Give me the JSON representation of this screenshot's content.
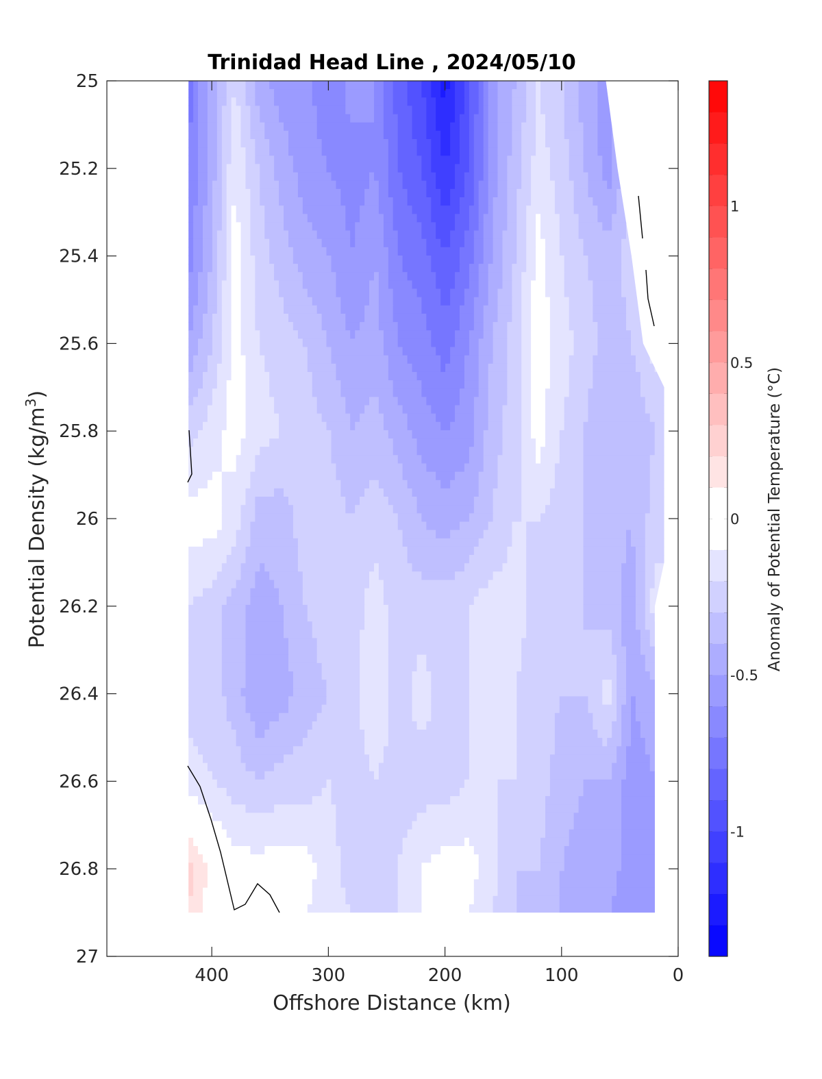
{
  "chart_data": {
    "type": "heatmap",
    "title": "Trinidad Head Line , 2024/05/10",
    "xlabel": "Offshore Distance (km)",
    "ylabel_main": "Potential Density (kg/m",
    "ylabel_sup": "3",
    "ylabel_close": ")",
    "xlim": [
      490,
      0
    ],
    "ylim": [
      25,
      27
    ],
    "x_ticks": [
      400,
      300,
      200,
      100,
      0
    ],
    "x_tick_labels": [
      "400",
      "300",
      "200",
      "100",
      "0"
    ],
    "y_ticks": [
      25,
      25.2,
      25.4,
      25.6,
      25.8,
      26,
      26.2,
      26.4,
      26.6,
      26.8,
      27
    ],
    "y_tick_labels": [
      "25",
      "25.2",
      "25.4",
      "25.6",
      "25.8",
      "26",
      "26.2",
      "26.4",
      "26.6",
      "26.8",
      "27"
    ],
    "colorbar": {
      "label": "Anomaly of Potential Temperature (°C)",
      "range": [
        -1.4,
        1.4
      ],
      "step": 0.1,
      "ticks": [
        -1,
        -0.5,
        0,
        0.5,
        1
      ],
      "tick_labels": [
        "-1",
        "-0.5",
        "0",
        "0.5",
        "1"
      ],
      "color_min": "#0000ff",
      "color_zero": "#ffffff",
      "color_max": "#ff0000"
    },
    "grid_x": [
      420,
      400,
      380,
      360,
      340,
      320,
      300,
      280,
      260,
      240,
      220,
      200,
      180,
      160,
      140,
      120,
      100,
      80,
      60,
      40,
      20
    ],
    "grid_y": [
      25.0,
      25.2,
      25.4,
      25.6,
      25.8,
      26.0,
      26.2,
      26.4,
      26.6,
      26.8,
      26.9
    ],
    "grid_values": [
      [
        -0.75,
        -0.45,
        -0.2,
        -0.45,
        -0.55,
        -0.55,
        -0.7,
        -0.55,
        -0.6,
        -0.85,
        -1.0,
        -1.25,
        -0.95,
        -0.55,
        -0.4,
        -0.2,
        -0.3,
        -0.45,
        -0.55,
        -0.25,
        null
      ],
      [
        -0.7,
        -0.45,
        -0.1,
        -0.3,
        -0.45,
        -0.55,
        -0.6,
        -0.65,
        -0.6,
        -0.8,
        -0.9,
        -1.1,
        -0.9,
        -0.55,
        -0.35,
        -0.15,
        -0.25,
        -0.4,
        -0.55,
        -0.3,
        null
      ],
      [
        -0.65,
        -0.4,
        -0.05,
        -0.25,
        -0.35,
        -0.45,
        -0.5,
        -0.6,
        -0.5,
        -0.7,
        -0.75,
        -0.9,
        -0.75,
        -0.5,
        -0.3,
        -0.05,
        -0.2,
        -0.3,
        -0.35,
        -0.25,
        null
      ],
      [
        -0.5,
        -0.3,
        -0.05,
        -0.2,
        -0.25,
        -0.3,
        -0.4,
        -0.5,
        -0.45,
        -0.6,
        -0.65,
        -0.75,
        -0.6,
        -0.4,
        -0.25,
        -0.05,
        -0.15,
        -0.25,
        -0.35,
        -0.3,
        -0.15
      ],
      [
        -0.25,
        -0.15,
        -0.05,
        -0.15,
        -0.2,
        -0.25,
        -0.3,
        -0.4,
        -0.35,
        -0.45,
        -0.55,
        -0.6,
        -0.55,
        -0.35,
        -0.25,
        -0.05,
        -0.2,
        -0.3,
        -0.4,
        -0.4,
        -0.3
      ],
      [
        -0.05,
        -0.05,
        -0.15,
        -0.35,
        -0.35,
        -0.25,
        -0.25,
        -0.3,
        -0.25,
        -0.3,
        -0.4,
        -0.45,
        -0.4,
        -0.3,
        -0.2,
        -0.2,
        -0.25,
        -0.3,
        -0.35,
        -0.4,
        -0.25
      ],
      [
        -0.2,
        -0.25,
        -0.35,
        -0.45,
        -0.4,
        -0.3,
        -0.25,
        -0.25,
        -0.15,
        -0.25,
        -0.25,
        -0.25,
        -0.2,
        -0.15,
        -0.15,
        -0.25,
        -0.25,
        -0.3,
        -0.35,
        -0.45,
        -0.15
      ],
      [
        -0.25,
        -0.25,
        -0.35,
        -0.5,
        -0.45,
        -0.35,
        -0.3,
        -0.25,
        -0.1,
        -0.25,
        -0.15,
        -0.25,
        -0.2,
        -0.1,
        -0.2,
        -0.25,
        -0.3,
        -0.3,
        -0.15,
        -0.5,
        -0.45
      ],
      [
        -0.15,
        -0.2,
        -0.25,
        -0.3,
        -0.25,
        -0.25,
        -0.2,
        -0.25,
        -0.2,
        -0.25,
        -0.25,
        -0.25,
        -0.2,
        -0.2,
        -0.2,
        -0.25,
        -0.35,
        -0.4,
        -0.4,
        -0.55,
        -0.5
      ],
      [
        0.25,
        0.05,
        -0.05,
        -0.05,
        -0.05,
        -0.05,
        -0.15,
        -0.25,
        -0.3,
        -0.2,
        -0.1,
        -0.05,
        -0.05,
        -0.15,
        -0.3,
        -0.3,
        -0.4,
        -0.45,
        -0.45,
        -0.55,
        null
      ],
      [
        0.2,
        0.05,
        -0.05,
        -0.05,
        -0.05,
        -0.1,
        -0.15,
        -0.2,
        -0.25,
        -0.2,
        -0.1,
        -0.05,
        -0.1,
        -0.2,
        -0.3,
        -0.35,
        -0.4,
        -0.45,
        -0.5,
        -0.55,
        null
      ]
    ]
  }
}
